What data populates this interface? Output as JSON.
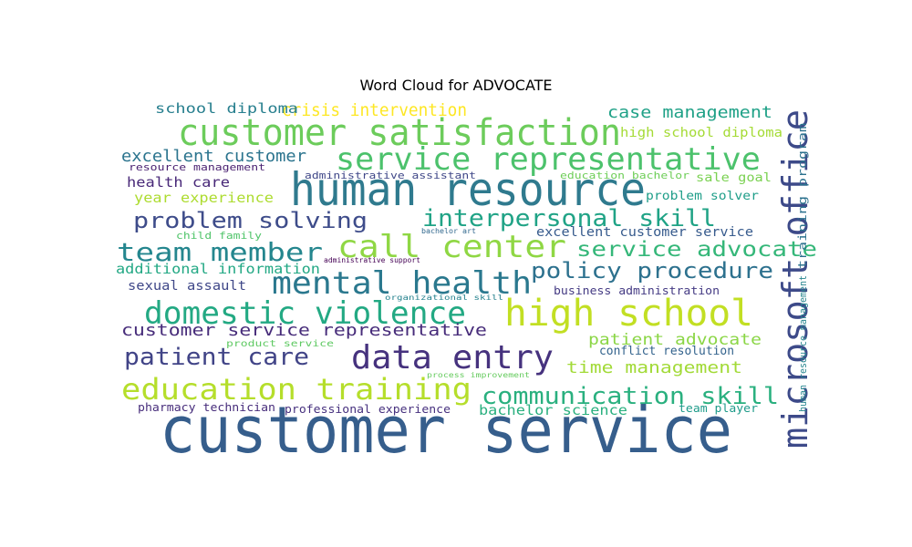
{
  "chart_data": {
    "type": "wordcloud",
    "title": "Word Cloud for ADVOCATE",
    "background": "#ffffff",
    "words": [
      {
        "text": "customer service",
        "color": "#365e8c"
      },
      {
        "text": "human resource",
        "color": "#2f7a8e"
      },
      {
        "text": "microsoft office",
        "color": "#3d4a89"
      },
      {
        "text": "customer satisfaction",
        "color": "#6ccc5b"
      },
      {
        "text": "high school",
        "color": "#c2df23"
      },
      {
        "text": "service representative",
        "color": "#4cc26c"
      },
      {
        "text": "call center",
        "color": "#8fd744"
      },
      {
        "text": "mental health",
        "color": "#2a788e"
      },
      {
        "text": "domestic violence",
        "color": "#23a983"
      },
      {
        "text": "data entry",
        "color": "#46327e"
      },
      {
        "text": "education training",
        "color": "#b5de2b"
      },
      {
        "text": "team member",
        "color": "#24868e"
      },
      {
        "text": "interpersonal skill",
        "color": "#20a386"
      },
      {
        "text": "communication skill",
        "color": "#2ab07f"
      },
      {
        "text": "problem solving",
        "color": "#3e4c8a"
      },
      {
        "text": "policy procedure",
        "color": "#2d718e"
      },
      {
        "text": "patient care",
        "color": "#414487"
      },
      {
        "text": "service advocate",
        "color": "#35b779"
      },
      {
        "text": "crisis intervention",
        "color": "#fde725"
      },
      {
        "text": "customer service representative",
        "color": "#472c7a"
      },
      {
        "text": "excellent customer",
        "color": "#2b748e"
      },
      {
        "text": "case management",
        "color": "#1fa187"
      },
      {
        "text": "time management",
        "color": "#a2da37"
      },
      {
        "text": "patient advocate",
        "color": "#8bd646"
      },
      {
        "text": "year experience",
        "color": "#addc30"
      },
      {
        "text": "bachelor science",
        "color": "#2ab07f"
      },
      {
        "text": "health care",
        "color": "#482878"
      },
      {
        "text": "additional information",
        "color": "#22a884"
      },
      {
        "text": "school diploma",
        "color": "#277f8e"
      },
      {
        "text": "high school diploma",
        "color": "#a5db36"
      },
      {
        "text": "excellent customer service",
        "color": "#375b8d"
      },
      {
        "text": "sexual assault",
        "color": "#3f4788"
      },
      {
        "text": "problem solver",
        "color": "#1f9e89"
      },
      {
        "text": "conflict resolution",
        "color": "#33638d"
      },
      {
        "text": "sale goal",
        "color": "#7ad151"
      },
      {
        "text": "business administration",
        "color": "#443a83"
      },
      {
        "text": "resource management",
        "color": "#481f70"
      },
      {
        "text": "pharmacy technician",
        "color": "#472d7b"
      },
      {
        "text": "professional experience",
        "color": "#46307e"
      },
      {
        "text": "team player",
        "color": "#1e9b8a"
      },
      {
        "text": "training program",
        "color": "#2c728e"
      },
      {
        "text": "human resource management",
        "color": "#25858e"
      },
      {
        "text": "administrative assistant",
        "color": "#3f4788"
      },
      {
        "text": "education bachelor",
        "color": "#6ece58"
      },
      {
        "text": "child family",
        "color": "#50c46a"
      },
      {
        "text": "product service",
        "color": "#5ec962"
      },
      {
        "text": "bachelor art",
        "color": "#31688e"
      },
      {
        "text": "administrative support",
        "color": "#440154"
      },
      {
        "text": "organizational skill",
        "color": "#26828e"
      },
      {
        "text": "process improvement",
        "color": "#65cb5e"
      }
    ]
  }
}
